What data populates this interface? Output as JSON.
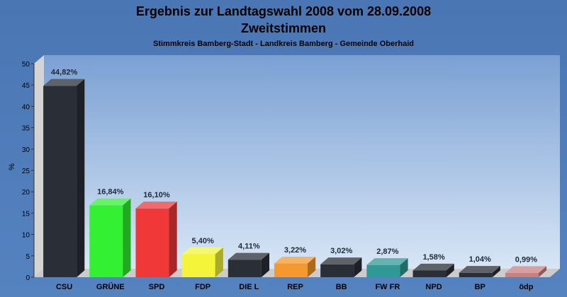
{
  "chart_data": {
    "type": "bar",
    "title": "Ergebnis zur Landtagswahl 2008 vom 28.09.2008",
    "subtitle": "Zweitstimmen",
    "caption": "Stimmkreis Bamberg-Stadt - Landkreis Bamberg - Gemeinde Oberhaid",
    "ylabel": "%",
    "xlabel": "",
    "ylim": [
      0,
      50
    ],
    "yticks": [
      0,
      5,
      10,
      15,
      20,
      25,
      30,
      35,
      40,
      45,
      50
    ],
    "grid": false,
    "categories": [
      "CSU",
      "GRÜNE",
      "SPD",
      "FDP",
      "DIE L",
      "REP",
      "BB",
      "FW FR",
      "NPD",
      "BP",
      "ödp"
    ],
    "values": [
      44.82,
      16.84,
      16.1,
      5.4,
      4.11,
      3.22,
      3.02,
      2.87,
      1.58,
      1.04,
      0.99
    ],
    "data_labels": [
      "44,82%",
      "16,84%",
      "16,10%",
      "5,40%",
      "4,11%",
      "3,22%",
      "3,02%",
      "2,87%",
      "1,58%",
      "1,04%",
      "0,99%"
    ],
    "colors": [
      "#2a2e36",
      "#33f033",
      "#f03838",
      "#f4f43a",
      "#2a2e36",
      "#f5982e",
      "#2a2e36",
      "#2f9a95",
      "#2a2e36",
      "#2a2e36",
      "#c88080"
    ]
  }
}
